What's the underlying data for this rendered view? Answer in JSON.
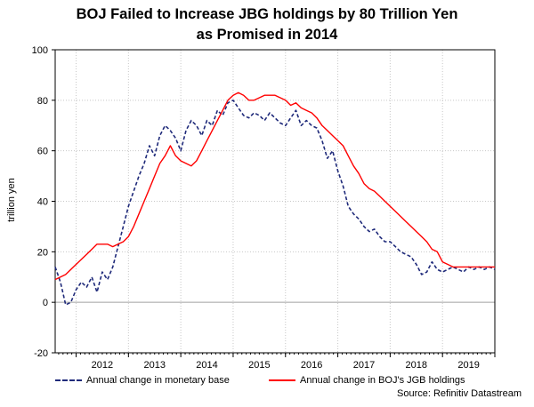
{
  "title_line1": "BOJ Failed to Increase JBG holdings by 80 Trillion Yen",
  "title_line2": "as Promised in 2014",
  "source": "Source: Refinitiv Datastream",
  "colors": {
    "monetary_base": "#1f2a7a",
    "jgb": "#ff0000",
    "grid": "#c8c8c8",
    "zero": "#a0a0a0"
  },
  "chart_data": {
    "type": "line",
    "title": "BOJ Failed to Increase JBG holdings by 80 Trillion Yen as Promised in 2014",
    "xlabel": "",
    "ylabel": "trillion yen",
    "ylim": [
      -20,
      100
    ],
    "yticks": [
      -20,
      0,
      20,
      40,
      60,
      80,
      100
    ],
    "xlim": [
      2011.6,
      2020.0
    ],
    "xticks": [
      "2012",
      "2013",
      "2014",
      "2015",
      "2016",
      "2017",
      "2018",
      "2019"
    ],
    "grid": true,
    "legend_position": "bottom",
    "series": [
      {
        "name": "Annual change in monetary base",
        "style": "dashed",
        "x": [
          2011.6,
          2011.7,
          2011.8,
          2011.9,
          2012.0,
          2012.1,
          2012.2,
          2012.3,
          2012.4,
          2012.5,
          2012.6,
          2012.7,
          2012.8,
          2012.9,
          2013.0,
          2013.1,
          2013.2,
          2013.3,
          2013.4,
          2013.5,
          2013.6,
          2013.7,
          2013.8,
          2013.9,
          2014.0,
          2014.1,
          2014.2,
          2014.3,
          2014.4,
          2014.5,
          2014.6,
          2014.7,
          2014.8,
          2014.9,
          2015.0,
          2015.1,
          2015.2,
          2015.3,
          2015.4,
          2015.5,
          2015.6,
          2015.7,
          2015.8,
          2015.9,
          2016.0,
          2016.1,
          2016.2,
          2016.3,
          2016.4,
          2016.5,
          2016.6,
          2016.7,
          2016.8,
          2016.9,
          2017.0,
          2017.1,
          2017.2,
          2017.3,
          2017.4,
          2017.5,
          2017.6,
          2017.7,
          2017.8,
          2017.9,
          2018.0,
          2018.1,
          2018.2,
          2018.3,
          2018.4,
          2018.5,
          2018.6,
          2018.7,
          2018.8,
          2018.9,
          2019.0,
          2019.1,
          2019.2,
          2019.3,
          2019.4,
          2019.5,
          2019.6,
          2019.7,
          2019.8,
          2019.9,
          2020.0
        ],
        "values": [
          14,
          8,
          -1,
          0,
          5,
          8,
          6,
          10,
          4,
          12,
          9,
          14,
          22,
          30,
          38,
          44,
          50,
          55,
          62,
          58,
          66,
          70,
          68,
          65,
          60,
          68,
          72,
          70,
          66,
          72,
          70,
          76,
          74,
          79,
          80,
          77,
          74,
          73,
          75,
          74,
          72,
          75,
          73,
          71,
          70,
          73,
          76,
          70,
          72,
          70,
          69,
          64,
          57,
          60,
          52,
          46,
          38,
          35,
          33,
          30,
          28,
          29,
          26,
          24,
          24,
          22,
          20,
          19,
          18,
          15,
          11,
          12,
          16,
          13,
          12,
          13,
          14,
          13,
          12,
          14,
          13,
          14,
          13,
          14,
          13
        ]
      },
      {
        "name": "Annual change in BOJ's JGB holdings",
        "style": "solid",
        "x": [
          2011.6,
          2011.7,
          2011.8,
          2011.9,
          2012.0,
          2012.1,
          2012.2,
          2012.3,
          2012.4,
          2012.5,
          2012.6,
          2012.7,
          2012.8,
          2012.9,
          2013.0,
          2013.1,
          2013.2,
          2013.3,
          2013.4,
          2013.5,
          2013.6,
          2013.7,
          2013.8,
          2013.9,
          2014.0,
          2014.1,
          2014.2,
          2014.3,
          2014.4,
          2014.5,
          2014.6,
          2014.7,
          2014.8,
          2014.9,
          2015.0,
          2015.1,
          2015.2,
          2015.3,
          2015.4,
          2015.5,
          2015.6,
          2015.7,
          2015.8,
          2015.9,
          2016.0,
          2016.1,
          2016.2,
          2016.3,
          2016.4,
          2016.5,
          2016.6,
          2016.7,
          2016.8,
          2016.9,
          2017.0,
          2017.1,
          2017.2,
          2017.3,
          2017.4,
          2017.5,
          2017.6,
          2017.7,
          2017.8,
          2017.9,
          2018.0,
          2018.1,
          2018.2,
          2018.3,
          2018.4,
          2018.5,
          2018.6,
          2018.7,
          2018.8,
          2018.9,
          2019.0,
          2019.1,
          2019.2,
          2019.3,
          2019.4,
          2019.5,
          2019.6,
          2019.7,
          2019.8,
          2019.9,
          2020.0
        ],
        "values": [
          9,
          10,
          11,
          13,
          15,
          17,
          19,
          21,
          23,
          23,
          23,
          22,
          23,
          24,
          26,
          30,
          35,
          40,
          45,
          50,
          55,
          58,
          62,
          58,
          56,
          55,
          54,
          56,
          60,
          64,
          68,
          72,
          76,
          80,
          82,
          83,
          82,
          80,
          80,
          81,
          82,
          82,
          82,
          81,
          80,
          78,
          79,
          77,
          76,
          75,
          73,
          70,
          68,
          66,
          64,
          62,
          58,
          54,
          51,
          47,
          45,
          44,
          42,
          40,
          38,
          36,
          34,
          32,
          30,
          28,
          26,
          24,
          21,
          20,
          16,
          15,
          14,
          14,
          14,
          14,
          14,
          14,
          14,
          14,
          14
        ]
      }
    ]
  }
}
